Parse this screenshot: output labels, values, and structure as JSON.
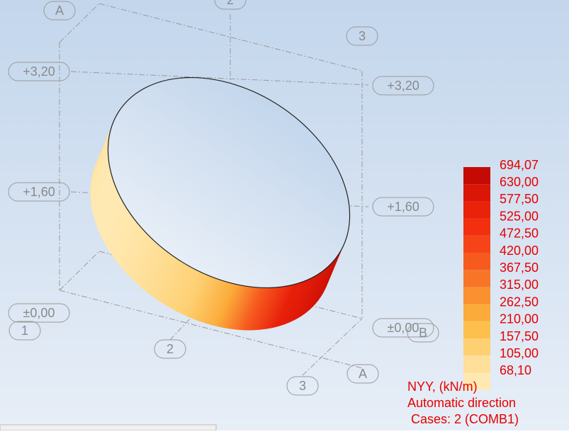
{
  "grid_labels": [
    "A",
    "2",
    "3",
    "+3,20",
    "+3,20",
    "+1,60",
    "+1,60",
    "±0,00",
    "1",
    "±0,00",
    "B",
    "2",
    "3",
    "A"
  ],
  "legend": {
    "entries": [
      {
        "label": "694,07",
        "color": "#c40a02"
      },
      {
        "label": "630,00",
        "color": "#da1606"
      },
      {
        "label": "577,50",
        "color": "#e9220a"
      },
      {
        "label": "525,00",
        "color": "#f2300f"
      },
      {
        "label": "472,50",
        "color": "#f64418"
      },
      {
        "label": "420,00",
        "color": "#f65a1f"
      },
      {
        "label": "367,50",
        "color": "#f87527"
      },
      {
        "label": "315,00",
        "color": "#fa9030"
      },
      {
        "label": "262,50",
        "color": "#fbab3a"
      },
      {
        "label": "210,00",
        "color": "#fdc04c"
      },
      {
        "label": "157,50",
        "color": "#fed072"
      },
      {
        "label": "105,00",
        "color": "#ffdf99"
      },
      {
        "label": "68,10",
        "color": "#ffe9b2"
      }
    ],
    "quantity": "NYY, (kN/m)",
    "direction": "Automatic direction",
    "cases": "Cases: 2 (COMB1)"
  }
}
